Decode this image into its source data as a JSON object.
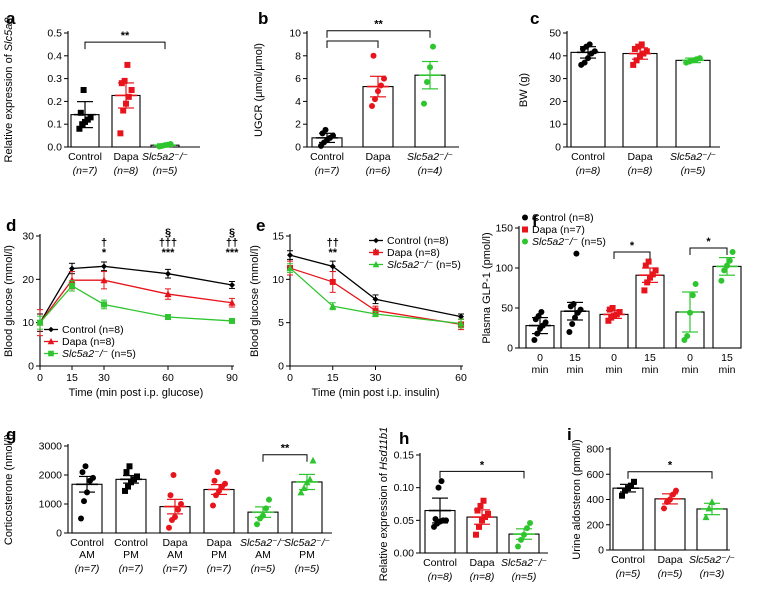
{
  "colors": {
    "black": "#000000",
    "red": "#e8141c",
    "green": "#2ec52e"
  },
  "chart_data": [
    {
      "id": "a",
      "type": "bar",
      "ylabel": "Relative expression of Slc5a2",
      "ylim": [
        0,
        0.5
      ],
      "yticks": [
        "0.0",
        "0.1",
        "0.2",
        "0.3",
        "0.4",
        "0.5"
      ],
      "ytick_vals": [
        0,
        0.1,
        0.2,
        0.3,
        0.4,
        0.5
      ],
      "categories": [
        "Control",
        "Dapa",
        "Slc5a2⁻/⁻"
      ],
      "ns": [
        "(n=7)",
        "(n=8)",
        "(n=5)"
      ],
      "colors": [
        "#000000",
        "#e8141c",
        "#2ec52e"
      ],
      "markers": [
        "square",
        "square",
        "circle"
      ],
      "values": [
        0.142,
        0.226,
        0.008
      ],
      "errors": [
        0.057,
        0.055,
        0.006
      ],
      "points": [
        [
          0.08,
          0.1,
          0.11,
          0.12,
          0.13,
          0.15,
          0.25
        ],
        [
          0.06,
          0.16,
          0.19,
          0.22,
          0.25,
          0.28,
          0.29,
          0.36
        ],
        [
          0.002,
          0.005,
          0.008,
          0.01,
          0.013
        ]
      ],
      "sig": [
        {
          "from": 0,
          "to": 2,
          "y": 0.46,
          "label": "**"
        }
      ]
    },
    {
      "id": "b",
      "type": "bar",
      "ylabel": "UGCR (μmol/μmol)",
      "ylim": [
        0,
        10
      ],
      "yticks": [
        "0",
        "2",
        "4",
        "6",
        "8",
        "10"
      ],
      "ytick_vals": [
        0,
        2,
        4,
        6,
        8,
        10
      ],
      "categories": [
        "Control",
        "Dapa",
        "Slc5a2⁻/⁻"
      ],
      "ns": [
        "(n=7)",
        "(n=6)",
        "(n=4)"
      ],
      "colors": [
        "#000000",
        "#e8141c",
        "#2ec52e"
      ],
      "markers": [
        "circle",
        "circle",
        "circle"
      ],
      "values": [
        0.8,
        5.3,
        6.3
      ],
      "errors": [
        0.4,
        0.9,
        1.2
      ],
      "points": [
        [
          0.1,
          0.4,
          0.6,
          0.8,
          1.0,
          1.2,
          1.5
        ],
        [
          3.6,
          4.2,
          4.9,
          5.4,
          6.0,
          8.0
        ],
        [
          3.8,
          5.7,
          7.0,
          8.8
        ]
      ],
      "sig": [
        {
          "from": 0,
          "to": 1,
          "y": 9.3,
          "label": ""
        },
        {
          "from": 0,
          "to": 2,
          "y": 10.2,
          "label": "**"
        }
      ]
    },
    {
      "id": "c",
      "type": "bar",
      "ylabel": "BW (g)",
      "ylim": [
        0,
        50
      ],
      "yticks": [
        "0",
        "10",
        "20",
        "30",
        "40",
        "50"
      ],
      "ytick_vals": [
        0,
        10,
        20,
        30,
        40,
        50
      ],
      "categories": [
        "Control",
        "Dapa",
        "Slc5a2⁻/⁻"
      ],
      "ns": [
        "(n=8)",
        "(n=8)",
        "(n=5)"
      ],
      "colors": [
        "#000000",
        "#e8141c",
        "#2ec52e"
      ],
      "markers": [
        "circle",
        "square",
        "circle"
      ],
      "values": [
        41.5,
        41.0,
        38.0
      ],
      "errors": [
        2.5,
        2.5,
        1.0
      ],
      "points": [
        [
          36,
          37,
          39,
          41,
          42,
          43,
          44,
          45
        ],
        [
          36,
          38,
          40,
          41,
          42,
          43,
          44,
          45
        ],
        [
          37,
          37.5,
          38,
          38.5,
          39
        ]
      ],
      "sig": []
    },
    {
      "id": "d",
      "type": "line",
      "xlabel": "Time (min post i.p. glucose)",
      "ylabel": "Blood glucose (mmol/l)",
      "xlim": [
        0,
        90
      ],
      "ylim": [
        0,
        30
      ],
      "xticks": [
        "0",
        "15",
        "30",
        "60",
        "90"
      ],
      "xtick_vals": [
        0,
        15,
        30,
        60,
        90
      ],
      "yticks": [
        "0",
        "10",
        "20",
        "30"
      ],
      "ytick_vals": [
        0,
        10,
        20,
        30
      ],
      "x": [
        0,
        15,
        30,
        60,
        90
      ],
      "series": [
        {
          "name": "Control (n=8)",
          "color": "#000000",
          "marker": "diamond",
          "values": [
            10.0,
            22.5,
            23.0,
            21.3,
            18.7
          ],
          "errors": [
            2.0,
            1.2,
            1.0,
            1.0,
            0.8
          ]
        },
        {
          "name": "Dapa (n=8)",
          "color": "#e8141c",
          "marker": "triangle",
          "values": [
            10.0,
            19.8,
            19.8,
            16.6,
            14.6
          ],
          "errors": [
            3.0,
            2.0,
            2.0,
            1.2,
            1.0
          ]
        },
        {
          "name": "Slc5a2⁻/⁻ (n=5)",
          "color": "#2ec52e",
          "marker": "square",
          "values": [
            10.0,
            18.5,
            14.2,
            11.3,
            10.4
          ],
          "errors": [
            1.5,
            1.2,
            1.0,
            0.5,
            0.4
          ]
        }
      ],
      "annotations": [
        {
          "x": 30,
          "lines": [
            "†",
            "*"
          ]
        },
        {
          "x": 60,
          "lines": [
            "§",
            "†††",
            "***"
          ]
        },
        {
          "x": 90,
          "lines": [
            "§",
            "††",
            "***"
          ]
        }
      ],
      "legend_pos": "bottom-left"
    },
    {
      "id": "e",
      "type": "line",
      "xlabel": "Time (min post i.p. insulin)",
      "ylabel": "Blood glucose (mmol/l)",
      "xlim": [
        0,
        60
      ],
      "ylim": [
        0,
        15
      ],
      "xticks": [
        "0",
        "15",
        "30",
        "60"
      ],
      "xtick_vals": [
        0,
        15,
        30,
        60
      ],
      "yticks": [
        "0",
        "5",
        "10",
        "15"
      ],
      "ytick_vals": [
        0,
        5,
        10,
        15
      ],
      "x": [
        0,
        15,
        30,
        60
      ],
      "series": [
        {
          "name": "Control (n=8)",
          "color": "#000000",
          "marker": "diamond",
          "values": [
            12.8,
            11.5,
            7.7,
            5.7
          ],
          "errors": [
            0.5,
            0.6,
            0.5,
            0.3
          ]
        },
        {
          "name": "Dapa (n=8)",
          "color": "#e8141c",
          "marker": "square",
          "values": [
            11.3,
            9.7,
            6.4,
            4.8
          ],
          "errors": [
            0.8,
            1.2,
            0.5,
            0.6
          ]
        },
        {
          "name": "Slc5a2⁻/⁻ (n=5)",
          "color": "#2ec52e",
          "marker": "triangle",
          "values": [
            11.3,
            6.9,
            6.0,
            4.9
          ],
          "errors": [
            0.5,
            0.4,
            0.3,
            0.5
          ]
        }
      ],
      "annotations": [
        {
          "x": 15,
          "lines": [
            "††",
            "**"
          ]
        },
        {
          "x": 30,
          "lines": [
            "*"
          ]
        }
      ],
      "legend_pos": "top-right"
    },
    {
      "id": "f",
      "type": "bar",
      "ylabel": "Plasma GLP-1 (pmol/l)",
      "ylim": [
        0,
        150
      ],
      "yticks": [
        "0",
        "50",
        "100",
        "150"
      ],
      "ytick_vals": [
        0,
        50,
        100,
        150
      ],
      "categories": [
        "0\nmin",
        "15\nmin",
        "0\nmin",
        "15\nmin",
        "0\nmin",
        "15\nmin"
      ],
      "colors": [
        "#000000",
        "#000000",
        "#e8141c",
        "#e8141c",
        "#2ec52e",
        "#2ec52e"
      ],
      "markers": [
        "circle",
        "circle",
        "square",
        "square",
        "circle",
        "circle"
      ],
      "values": [
        28,
        46,
        42,
        91,
        45,
        102
      ],
      "errors": [
        10,
        11,
        5,
        9,
        25,
        11
      ],
      "points": [
        [
          10,
          18,
          24,
          28,
          32,
          36,
          40,
          45
        ],
        [
          20,
          30,
          38,
          44,
          48,
          52,
          55,
          118
        ],
        [
          34,
          38,
          40,
          42,
          45,
          48,
          50
        ],
        [
          72,
          82,
          88,
          92,
          97,
          103,
          108
        ],
        [
          10,
          15,
          44,
          66,
          80
        ],
        [
          84,
          97,
          103,
          109,
          120
        ]
      ],
      "legend": [
        {
          "label": "Control (n=8)",
          "color": "#000000",
          "marker": "circle"
        },
        {
          "label": "Dapa (n=7)",
          "color": "#e8141c",
          "marker": "square"
        },
        {
          "label": "Slc5a2⁻/⁻ (n=5)",
          "color": "#2ec52e",
          "marker": "circle"
        }
      ],
      "sig": [
        {
          "from": 2,
          "to": 3,
          "y": 120,
          "label": "*"
        },
        {
          "from": 4,
          "to": 5,
          "y": 125,
          "label": "*"
        }
      ]
    },
    {
      "id": "g",
      "type": "bar",
      "ylabel": "Corticosterone (nmol/l)",
      "ylim": [
        0,
        3000
      ],
      "yticks": [
        "0",
        "1000",
        "2000",
        "3000"
      ],
      "ytick_vals": [
        0,
        1000,
        2000,
        3000
      ],
      "categories": [
        "Control\nAM",
        "Control\nPM",
        "Dapa\nAM",
        "Dapa\nPM",
        "Slc5a2⁻/⁻\nAM",
        "Slc5a2⁻/⁻\nPM"
      ],
      "ns": [
        "(n=7)",
        "(n=7)",
        "(n=7)",
        "(n=7)",
        "(n=5)",
        "(n=5)"
      ],
      "colors": [
        "#000000",
        "#000000",
        "#e8141c",
        "#e8141c",
        "#2ec52e",
        "#2ec52e"
      ],
      "markers": [
        "circle",
        "square",
        "circle",
        "circle",
        "circle",
        "triangle"
      ],
      "values": [
        1680,
        1850,
        910,
        1500,
        720,
        1760
      ],
      "errors": [
        270,
        130,
        250,
        170,
        180,
        260
      ],
      "points": [
        [
          500,
          1100,
          1400,
          1800,
          1900,
          2100,
          2300
        ],
        [
          1450,
          1600,
          1750,
          1850,
          1950,
          2100,
          2300
        ],
        [
          180,
          450,
          550,
          800,
          1000,
          1300,
          2000
        ],
        [
          950,
          1300,
          1450,
          1600,
          1700,
          1800,
          2100
        ],
        [
          300,
          500,
          600,
          850,
          1150
        ],
        [
          1400,
          1550,
          1750,
          1850,
          2500
        ]
      ],
      "sig": [
        {
          "from": 4,
          "to": 5,
          "y": 2700,
          "label": "**"
        }
      ]
    },
    {
      "id": "h",
      "type": "bar",
      "ylabel": "Relative expression of Hsd11b1",
      "ylim": [
        0,
        0.15
      ],
      "yticks": [
        "0.00",
        "0.05",
        "0.10",
        "0.15"
      ],
      "ytick_vals": [
        0,
        0.05,
        0.1,
        0.15
      ],
      "categories": [
        "Control",
        "Dapa",
        "Slc5a2⁻/⁻"
      ],
      "ns": [
        "(n=8)",
        "(n=8)",
        "(n=5)"
      ],
      "colors": [
        "#000000",
        "#e8141c",
        "#2ec52e"
      ],
      "markers": [
        "circle",
        "square",
        "circle"
      ],
      "values": [
        0.065,
        0.055,
        0.029
      ],
      "errors": [
        0.019,
        0.011,
        0.008
      ],
      "points": [
        [
          0.04,
          0.045,
          0.048,
          0.05,
          0.05,
          0.052,
          0.1,
          0.11
        ],
        [
          0.028,
          0.04,
          0.05,
          0.055,
          0.06,
          0.065,
          0.072,
          0.08
        ],
        [
          0.01,
          0.02,
          0.028,
          0.038,
          0.046
        ]
      ],
      "sig": [
        {
          "from": 0,
          "to": 2,
          "y": 0.125,
          "label": "*"
        }
      ]
    },
    {
      "id": "i",
      "type": "bar",
      "ylabel": "Urine aldosteron (pmol/l)",
      "ylim": [
        0,
        800
      ],
      "yticks": [
        "0",
        "200",
        "400",
        "600",
        "800"
      ],
      "ytick_vals": [
        0,
        200,
        400,
        600,
        800
      ],
      "categories": [
        "Control",
        "Dapa",
        "Slc5a2⁻/⁻"
      ],
      "ns": [
        "(n=5)",
        "(n=5)",
        "(n=3)"
      ],
      "colors": [
        "#000000",
        "#e8141c",
        "#2ec52e"
      ],
      "markers": [
        "square",
        "circle",
        "triangle"
      ],
      "values": [
        490,
        405,
        325
      ],
      "errors": [
        30,
        40,
        45
      ],
      "points": [
        [
          430,
          470,
          490,
          510,
          540
        ],
        [
          330,
          380,
          400,
          440,
          470
        ],
        [
          260,
          330,
          380
        ]
      ],
      "sig": [
        {
          "from": 0,
          "to": 2,
          "y": 620,
          "label": "*"
        }
      ]
    }
  ]
}
